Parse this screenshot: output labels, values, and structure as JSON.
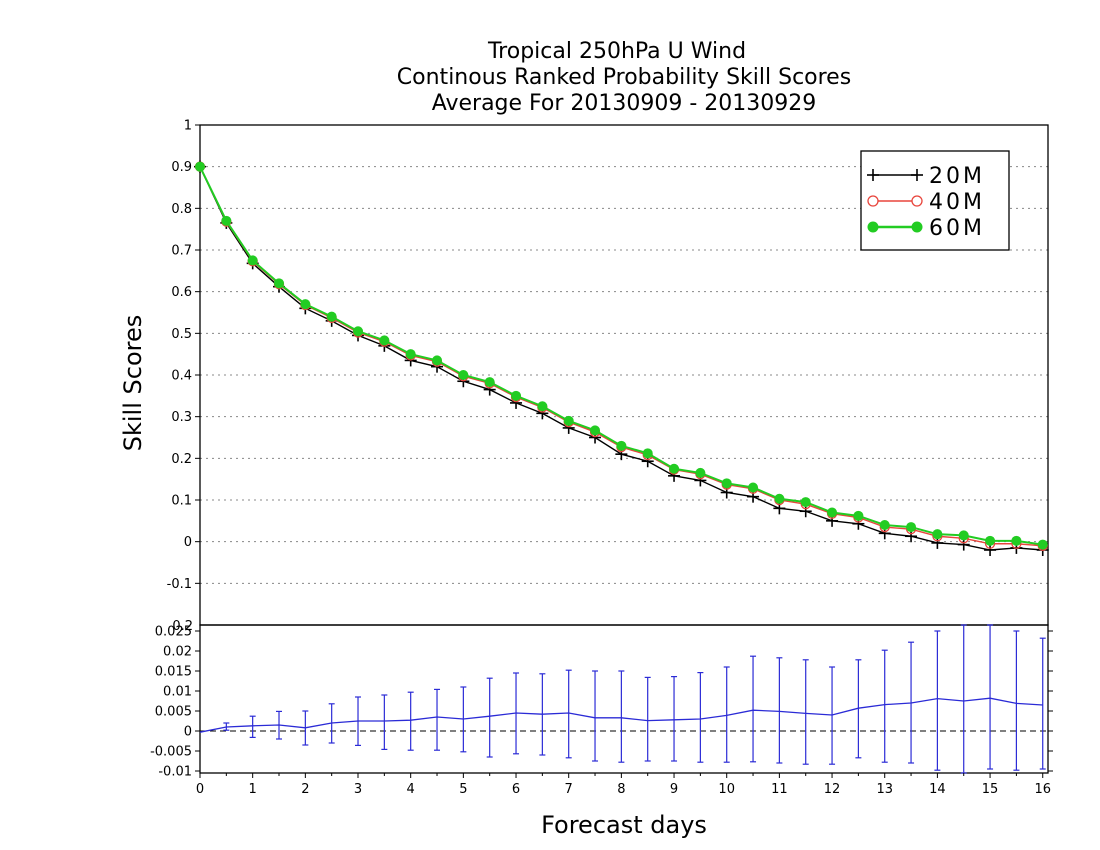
{
  "chart_data": {
    "title_lines": [
      "Tropical 250hPa U Wind",
      "Continous Ranked Probability Skill Scores",
      "Average For 20130909 - 20130929"
    ],
    "xlabel": "Forecast days",
    "ylabel": "Skill Scores",
    "x_ticks": [
      "0",
      "1",
      "2",
      "3",
      "4",
      "5",
      "6",
      "7",
      "8",
      "9",
      "10",
      "11",
      "12",
      "13",
      "14",
      "15",
      "16"
    ],
    "top": {
      "type": "line",
      "xlim": [
        0,
        16.1
      ],
      "ylim": [
        -0.2,
        1
      ],
      "y_ticks": [
        "-0.2",
        "-0.1",
        "0",
        "0.1",
        "0.2",
        "0.3",
        "0.4",
        "0.5",
        "0.6",
        "0.7",
        "0.8",
        "0.9",
        "1"
      ],
      "grid": true,
      "legend_position": "top-right",
      "x": [
        0,
        0.5,
        1,
        1.5,
        2,
        2.5,
        3,
        3.5,
        4,
        4.5,
        5,
        5.5,
        6,
        6.5,
        7,
        7.5,
        8,
        8.5,
        9,
        9.5,
        10,
        10.5,
        11,
        11.5,
        12,
        12.5,
        13,
        13.5,
        14,
        14.5,
        15,
        15.5,
        16
      ],
      "series": [
        {
          "name": "20M",
          "color": "#000000",
          "marker": "plus",
          "values": [
            0.9,
            0.765,
            0.668,
            0.612,
            0.56,
            0.53,
            0.495,
            0.47,
            0.435,
            0.42,
            0.385,
            0.365,
            0.333,
            0.308,
            0.273,
            0.25,
            0.21,
            0.193,
            0.158,
            0.147,
            0.118,
            0.108,
            0.08,
            0.073,
            0.05,
            0.043,
            0.02,
            0.013,
            -0.003,
            -0.007,
            -0.02,
            -0.015,
            -0.02
          ]
        },
        {
          "name": "40M",
          "color": "#e8453c",
          "marker": "open-circle",
          "values": [
            0.9,
            0.768,
            0.673,
            0.618,
            0.568,
            0.537,
            0.502,
            0.48,
            0.447,
            0.432,
            0.397,
            0.38,
            0.347,
            0.322,
            0.287,
            0.263,
            0.227,
            0.208,
            0.173,
            0.162,
            0.137,
            0.127,
            0.1,
            0.09,
            0.067,
            0.058,
            0.035,
            0.03,
            0.013,
            0.008,
            -0.005,
            -0.005,
            -0.01
          ]
        },
        {
          "name": "60M",
          "color": "#22cc22",
          "marker": "filled-circle",
          "values": [
            0.9,
            0.77,
            0.675,
            0.62,
            0.57,
            0.54,
            0.505,
            0.483,
            0.45,
            0.435,
            0.4,
            0.383,
            0.35,
            0.325,
            0.29,
            0.267,
            0.23,
            0.212,
            0.175,
            0.165,
            0.14,
            0.13,
            0.103,
            0.095,
            0.07,
            0.062,
            0.04,
            0.035,
            0.018,
            0.015,
            0.002,
            0.002,
            -0.007
          ]
        }
      ]
    },
    "bottom": {
      "type": "line-errorbar",
      "xlim": [
        0,
        16.1
      ],
      "ylim": [
        -0.0105,
        0.0265
      ],
      "y_ticks": [
        "-0.01",
        "-0.005",
        "0",
        "0.005",
        "0.01",
        "0.015",
        "0.02",
        "0.025"
      ],
      "top_tick": "0.2",
      "color": "#2b2bd6",
      "x": [
        0,
        0.5,
        1,
        1.5,
        2,
        2.5,
        3,
        3.5,
        4,
        4.5,
        5,
        5.5,
        6,
        6.5,
        7,
        7.5,
        8,
        8.5,
        9,
        9.5,
        10,
        10.5,
        11,
        11.5,
        12,
        12.5,
        13,
        13.5,
        14,
        14.5,
        15,
        15.5,
        16
      ],
      "mean": [
        -0.0003,
        0.001,
        0.0013,
        0.0015,
        0.0008,
        0.002,
        0.0025,
        0.0025,
        0.0027,
        0.0035,
        0.003,
        0.0037,
        0.0045,
        0.0042,
        0.0045,
        0.0033,
        0.0033,
        0.0026,
        0.0028,
        0.003,
        0.0039,
        0.0052,
        0.0049,
        0.0044,
        0.004,
        0.0057,
        0.0066,
        0.007,
        0.0081,
        0.0075,
        0.0082,
        0.0069,
        0.0065
      ],
      "upper": [
        0,
        0.002,
        0.0037,
        0.0049,
        0.005,
        0.0068,
        0.0085,
        0.009,
        0.0097,
        0.0104,
        0.011,
        0.0132,
        0.0145,
        0.0143,
        0.0152,
        0.015,
        0.015,
        0.0134,
        0.0136,
        0.0146,
        0.016,
        0.0187,
        0.0183,
        0.0178,
        0.016,
        0.0178,
        0.0202,
        0.0222,
        0.025,
        0.0265,
        0.0265,
        0.025,
        0.0232
      ],
      "lower": [
        0,
        0.0002,
        -0.0016,
        -0.002,
        -0.0035,
        -0.003,
        -0.0036,
        -0.0046,
        -0.0048,
        -0.0048,
        -0.0052,
        -0.0065,
        -0.0057,
        -0.006,
        -0.0067,
        -0.0075,
        -0.0078,
        -0.0075,
        -0.0075,
        -0.0078,
        -0.0078,
        -0.0077,
        -0.008,
        -0.0083,
        -0.0083,
        -0.0067,
        -0.0078,
        -0.008,
        -0.0098,
        -0.0105,
        -0.0095,
        -0.0098,
        -0.0095
      ]
    }
  }
}
